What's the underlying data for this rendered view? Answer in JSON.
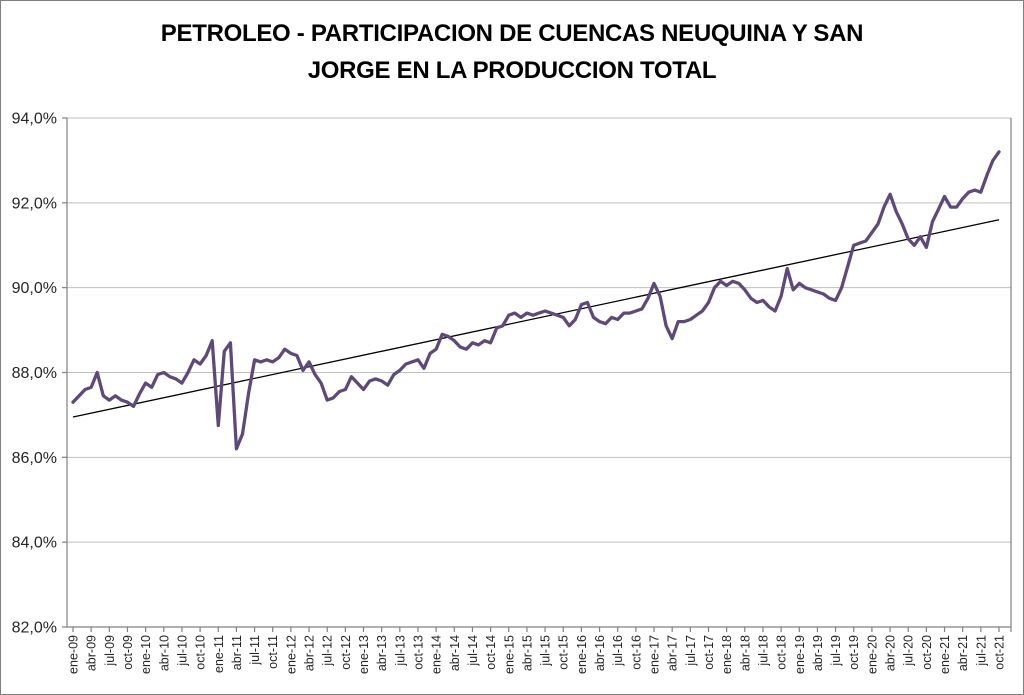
{
  "title": {
    "line1": "PETROLEO - PARTICIPACION DE CUENCAS NEUQUINA Y SAN",
    "line2": "JORGE EN LA PRODUCCION TOTAL"
  },
  "chart_data": {
    "type": "line",
    "title": "PETROLEO - PARTICIPACION DE CUENCAS NEUQUINA Y SAN JORGE EN LA PRODUCCION TOTAL",
    "xlabel": "",
    "ylabel": "",
    "x_start": "ene-09",
    "x_end": "oct-21",
    "x_frequency": "monthly",
    "ylim": [
      82,
      94
    ],
    "y_tick_step_pct": 2,
    "y_tick_labels": [
      "82,0%",
      "84,0%",
      "86,0%",
      "88,0%",
      "90,0%",
      "92,0%",
      "94,0%"
    ],
    "x_tick_labels": [
      "ene-09",
      "abr-09",
      "jul-09",
      "oct-09",
      "ene-10",
      "abr-10",
      "jul-10",
      "oct-10",
      "ene-11",
      "abr-11",
      "jul-11",
      "oct-11",
      "ene-12",
      "abr-12",
      "jul-12",
      "oct-12",
      "ene-13",
      "abr-13",
      "jul-13",
      "oct-13",
      "ene-14",
      "abr-14",
      "jul-14",
      "oct-14",
      "ene-15",
      "abr-15",
      "jul-15",
      "oct-15",
      "ene-16",
      "abr-16",
      "jul-16",
      "oct-16",
      "ene-17",
      "abr-17",
      "jul-17",
      "oct-17",
      "ene-18",
      "abr-18",
      "jul-18",
      "oct-18",
      "ene-19",
      "abr-19",
      "jul-19",
      "oct-19",
      "ene-20",
      "abr-20",
      "jul-20",
      "oct-20",
      "ene-21",
      "abr-21",
      "jul-21",
      "oct-21"
    ],
    "x_tick_every_n_months": 3,
    "grid": "horizontal",
    "legend": "none",
    "line_color": "#5F497A",
    "grid_color": "#BFBFBF",
    "axis_color": "#808080",
    "label_color": "#262626",
    "values_unit": "percent",
    "values": [
      87.3,
      87.45,
      87.6,
      87.65,
      88.0,
      87.45,
      87.35,
      87.45,
      87.35,
      87.3,
      87.2,
      87.5,
      87.75,
      87.65,
      87.95,
      88.0,
      87.9,
      87.85,
      87.75,
      88.0,
      88.3,
      88.2,
      88.4,
      88.75,
      86.75,
      88.5,
      88.7,
      86.2,
      86.55,
      87.5,
      88.3,
      88.25,
      88.3,
      88.25,
      88.35,
      88.55,
      88.45,
      88.4,
      88.05,
      88.25,
      87.95,
      87.75,
      87.35,
      87.4,
      87.55,
      87.6,
      87.9,
      87.75,
      87.6,
      87.8,
      87.85,
      87.8,
      87.7,
      87.95,
      88.05,
      88.2,
      88.25,
      88.3,
      88.1,
      88.45,
      88.55,
      88.9,
      88.85,
      88.75,
      88.6,
      88.55,
      88.7,
      88.65,
      88.75,
      88.7,
      89.05,
      89.1,
      89.35,
      89.4,
      89.3,
      89.4,
      89.35,
      89.4,
      89.45,
      89.4,
      89.35,
      89.3,
      89.1,
      89.25,
      89.6,
      89.65,
      89.3,
      89.2,
      89.15,
      89.3,
      89.25,
      89.4,
      89.4,
      89.45,
      89.5,
      89.75,
      90.1,
      89.8,
      89.1,
      88.8,
      89.2,
      89.2,
      89.25,
      89.35,
      89.45,
      89.65,
      90.0,
      90.15,
      90.05,
      90.15,
      90.1,
      89.95,
      89.75,
      89.65,
      89.7,
      89.55,
      89.45,
      89.8,
      90.45,
      89.95,
      90.1,
      90.0,
      89.95,
      89.9,
      89.85,
      89.75,
      89.7,
      90.0,
      90.5,
      91.0,
      91.05,
      91.1,
      91.3,
      91.5,
      91.9,
      92.2,
      91.8,
      91.5,
      91.15,
      91.0,
      91.2,
      90.95,
      91.55,
      91.85,
      92.15,
      91.9,
      91.9,
      92.1,
      92.25,
      92.3,
      92.25,
      92.65,
      93.0,
      93.2
    ],
    "trendline": {
      "type": "linear",
      "color": "#000000",
      "start_value": 86.95,
      "end_value": 91.6
    }
  }
}
